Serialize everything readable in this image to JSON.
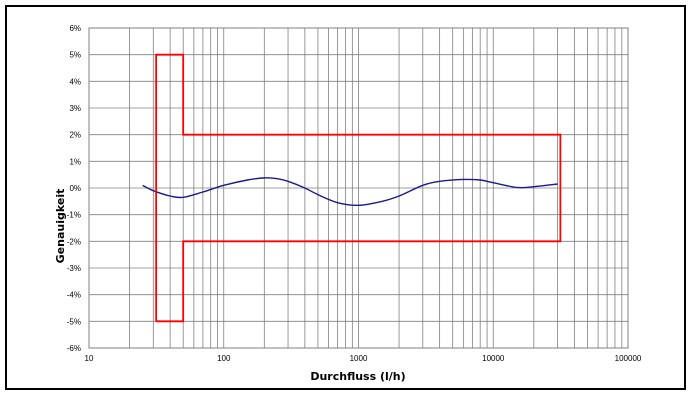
{
  "chart_data": {
    "type": "line",
    "title": "",
    "xlabel": "Durchfluss (l/h)",
    "ylabel": "Genauigkeit",
    "xscale": "log",
    "xlim": [
      10,
      100000
    ],
    "ylim": [
      -6,
      6
    ],
    "grid": true,
    "x_tick_labels": [
      "10",
      "100",
      "1000",
      "10000",
      "100000"
    ],
    "x_ticks": [
      10,
      100,
      1000,
      10000,
      100000
    ],
    "y_tick_labels": [
      "-6%",
      "-5%",
      "-4%",
      "-3%",
      "-2%",
      "-1%",
      "0%",
      "1%",
      "2%",
      "3%",
      "4%",
      "5%",
      "6%"
    ],
    "y_ticks": [
      -6,
      -5,
      -4,
      -3,
      -2,
      -1,
      0,
      1,
      2,
      3,
      4,
      5,
      6
    ],
    "series": [
      {
        "color": "#1a1a8c",
        "x": [
          25,
          30,
          40,
          50,
          70,
          100,
          150,
          200,
          250,
          300,
          400,
          500,
          700,
          1000,
          1500,
          2000,
          3000,
          4000,
          6000,
          8000,
          10000,
          15000,
          20000,
          30000
        ],
        "y": [
          0.1,
          -0.1,
          -0.3,
          -0.35,
          -0.15,
          0.1,
          0.3,
          0.38,
          0.35,
          0.25,
          0.0,
          -0.25,
          -0.55,
          -0.65,
          -0.5,
          -0.3,
          0.1,
          0.25,
          0.32,
          0.3,
          0.2,
          0.02,
          0.05,
          0.15
        ]
      },
      {
        "color": "#ff0000",
        "x": [
          31.5,
          31.5,
          50,
          50,
          31500,
          31500,
          50,
          50,
          31.5
        ],
        "y": [
          -5,
          5,
          5,
          2,
          2,
          -2,
          -2,
          -5,
          -5
        ]
      }
    ]
  }
}
